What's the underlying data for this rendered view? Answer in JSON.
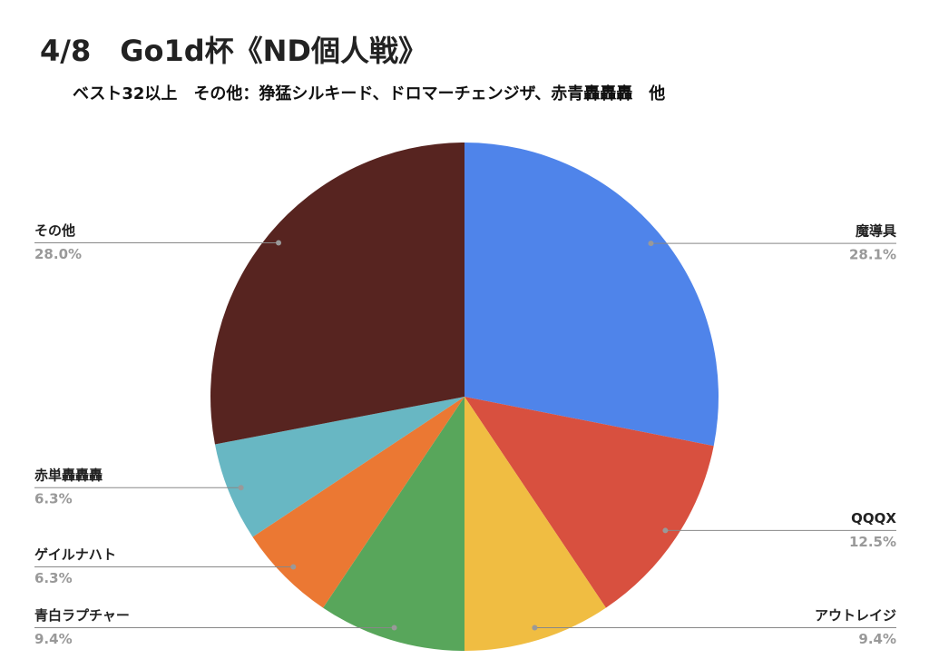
{
  "chart_data": {
    "type": "pie",
    "title": "4/8　Go1d杯《ND個人戦》",
    "subtitle": "ベスト32以上　その他：狰猛シルキード、ドロマーチェンジザ、赤青轟轟轟　他",
    "categories": [
      "魔導具",
      "QQQX",
      "アウトレイジ",
      "青白ラプチャー",
      "ゲイルナハト",
      "赤単轟轟轟",
      "その他"
    ],
    "values": [
      28.1,
      12.5,
      9.4,
      9.4,
      6.3,
      6.3,
      28.0
    ],
    "value_labels": [
      "28.1%",
      "12.5%",
      "9.4%",
      "9.4%",
      "6.3%",
      "6.3%",
      "28.0%"
    ],
    "colors": [
      "#4f84ea",
      "#d8503f",
      "#f0bd42",
      "#58a65b",
      "#eb7833",
      "#68b7c3",
      "#572420"
    ]
  }
}
